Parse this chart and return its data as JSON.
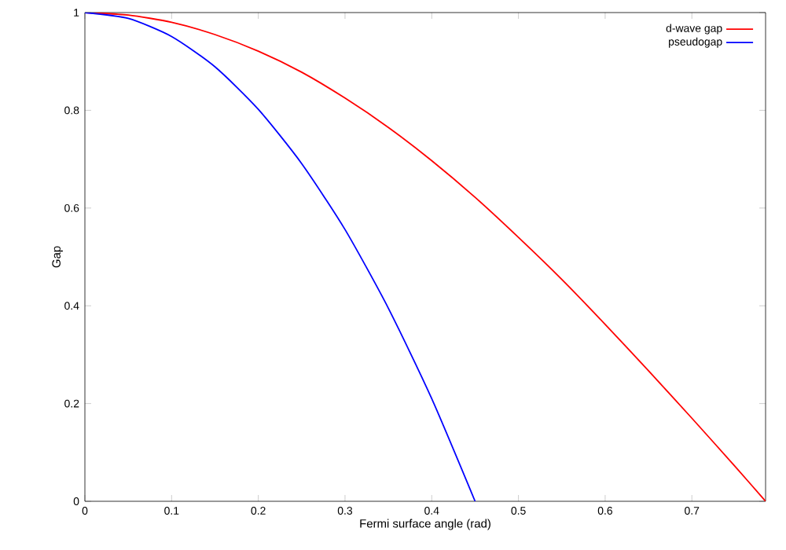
{
  "chart_data": {
    "type": "line",
    "xlabel": "Fermi surface angle (rad)",
    "ylabel": "Gap",
    "xlim": [
      0,
      0.785
    ],
    "ylim": [
      0,
      1
    ],
    "xticks": [
      0,
      0.1,
      0.2,
      0.3,
      0.4,
      0.5,
      0.6,
      0.7
    ],
    "yticks": [
      0,
      0.2,
      0.4,
      0.6,
      0.8,
      1
    ],
    "grid": false,
    "legend": "top right",
    "marker": "none",
    "line_style": "solid",
    "series": [
      {
        "name": "d-wave gap",
        "color": "#ff0000",
        "x": [
          0,
          0.05,
          0.1,
          0.15,
          0.2,
          0.25,
          0.3,
          0.35,
          0.4,
          0.45,
          0.5,
          0.55,
          0.6,
          0.65,
          0.7,
          0.75,
          0.785
        ],
        "values": [
          1,
          0.995,
          0.98,
          0.955,
          0.921,
          0.878,
          0.825,
          0.765,
          0.697,
          0.622,
          0.54,
          0.454,
          0.362,
          0.267,
          0.17,
          0.071,
          0
        ]
      },
      {
        "name": "pseudogap",
        "color": "#0000ff",
        "x": [
          0,
          0.05,
          0.1,
          0.15,
          0.2,
          0.25,
          0.3,
          0.35,
          0.4,
          0.45
        ],
        "values": [
          1,
          0.988,
          0.951,
          0.889,
          0.802,
          0.691,
          0.556,
          0.395,
          0.21,
          0
        ]
      }
    ]
  }
}
